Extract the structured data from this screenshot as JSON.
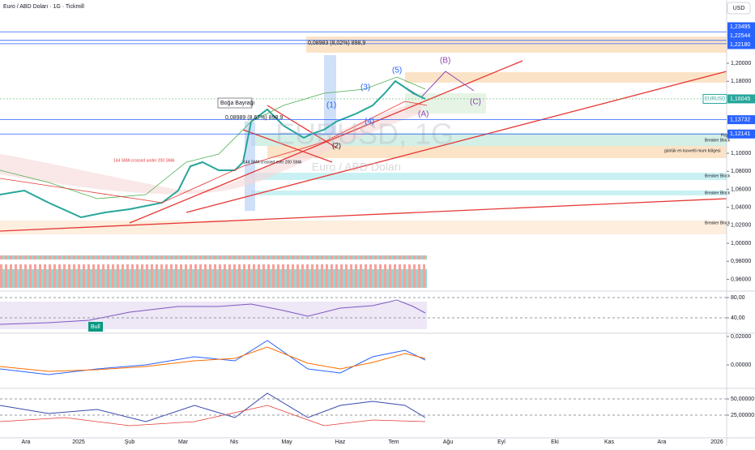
{
  "header": {
    "title": "Euro / ABD Doları · 1G · Tickmill",
    "currency": "USD"
  },
  "watermark": {
    "symbol": "EURUSD, 1G",
    "name": "Euro / ABD Doları"
  },
  "price_axis": {
    "ylim": [
      0.9505,
      1.2703
    ],
    "yticks": [
      {
        "value": 1.2,
        "label": "1,20000"
      },
      {
        "value": 1.18,
        "label": "1,18000"
      },
      {
        "value": 1.1,
        "label": "1,10000"
      },
      {
        "value": 1.08,
        "label": "1,08000"
      },
      {
        "value": 1.06,
        "label": "1,06000"
      },
      {
        "value": 1.04,
        "label": "1,04000"
      },
      {
        "value": 1.02,
        "label": "1,02000"
      },
      {
        "value": 1.0,
        "label": "1,00000"
      },
      {
        "value": 0.98,
        "label": "0,98000"
      },
      {
        "value": 0.96,
        "label": "0,96000"
      }
    ]
  },
  "price_badges": [
    {
      "value": 1.23495,
      "label": "1,23495"
    },
    {
      "value": 1.22544,
      "label": "1,22544"
    },
    {
      "value": 1.2218,
      "label": "1,22180"
    },
    {
      "value": 1.13732,
      "label": "1,13732"
    },
    {
      "value": 1.12141,
      "label": "1,12141"
    }
  ],
  "last_price": {
    "symbol": "EURUSD",
    "value": 1.16045,
    "label": "1,16045"
  },
  "annotations": [
    "Boğa Bayrağı",
    "0,08989 (8,67%) 898,9",
    "0,08983 (8,02%) 898,9",
    "(1)",
    "(2)",
    "(3)",
    "(4)",
    "(5)",
    "(A)",
    "(B)",
    "(C)",
    "Breaker Block",
    "Fvg",
    "Breaker Block",
    "Breaker Block",
    "Breaker Block",
    "günlük en kuvvetli mum bölgesi",
    "144 SMA crossed under 200 SMA",
    "144 SMA crossed over 200 SMA",
    "Bull"
  ],
  "rsi_axis": {
    "ylim": [
      11.2,
      91.2
    ],
    "yticks": [
      {
        "value": 80,
        "label": "80,00"
      },
      {
        "value": 40,
        "label": "40,00"
      }
    ]
  },
  "macd_axis": {
    "ylim": [
      -0.016,
      0.0217
    ],
    "yticks": [
      {
        "value": 0.02,
        "label": "0,02000"
      },
      {
        "value": 0,
        "label": "0,00000"
      }
    ]
  },
  "osc_axis": {
    "ylim": [
      -10,
      65
    ],
    "yticks": [
      {
        "value": 50,
        "label": "50,00000"
      },
      {
        "value": 25,
        "label": "25,00000"
      }
    ]
  },
  "time_axis": [
    "Ara",
    "2025",
    "Şub",
    "Mar",
    "Nis",
    "May",
    "Haz",
    "Tem",
    "Ağu",
    "Eyl",
    "Eki",
    "Kas",
    "Ara",
    "2026"
  ]
}
